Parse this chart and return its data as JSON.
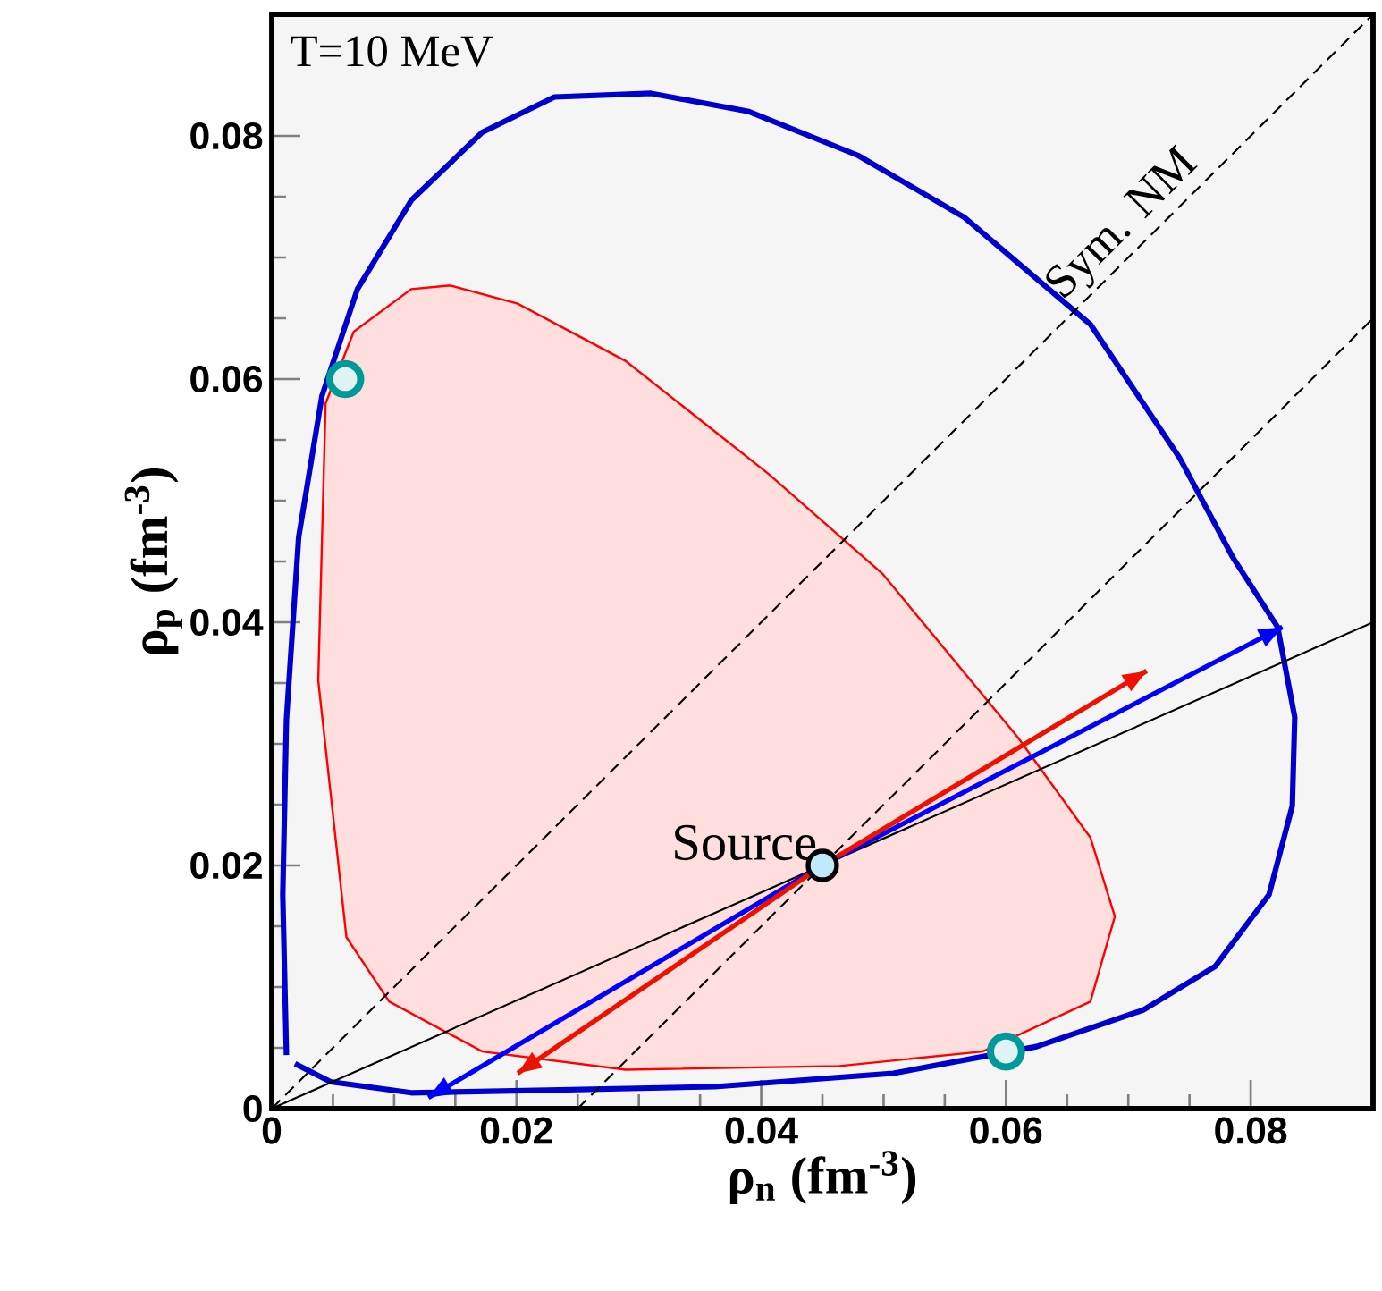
{
  "chart_data": {
    "type": "line",
    "xlabel": "ρ$_{n}$  (fm$^{-3}$)",
    "ylabel": "ρ$_{p}$  (fm$^{-3}$)",
    "xlim": [
      0,
      0.09
    ],
    "ylim": [
      0,
      0.09
    ],
    "xticks": [
      0,
      0.02,
      0.04,
      0.06,
      0.08
    ],
    "yticks": [
      0,
      0.02,
      0.04,
      0.06,
      0.08
    ],
    "grid": false,
    "annotations": [
      {
        "text": "T=10 MeV"
      },
      {
        "text": "Source",
        "x": 0.045,
        "y": 0.02
      }
    ],
    "series": [
      {
        "type": "area",
        "color": "#ff0000",
        "x": [
          0.0146,
          0.0201,
          0.0289,
          0.0406,
          0.0499,
          0.061,
          0.0669,
          0.0689,
          0.0669,
          0.0581,
          0.0464,
          0.0289,
          0.0172,
          0.0096,
          0.0061,
          0.0038,
          0.0044,
          0.0067,
          0.0114,
          0.0146
        ],
        "values": [
          0.0677,
          0.0662,
          0.0615,
          0.0522,
          0.044,
          0.0305,
          0.0223,
          0.0158,
          0.0088,
          0.0047,
          0.0035,
          0.0032,
          0.0047,
          0.0088,
          0.0141,
          0.0352,
          0.058,
          0.0639,
          0.0674,
          0.0677
        ]
      },
      {
        "color": "#0000cc",
        "x": [
          0.0012,
          0.0009,
          0.0012,
          0.0022,
          0.0041,
          0.007,
          0.0114,
          0.0172,
          0.0231,
          0.031,
          0.039,
          0.0479,
          0.0566,
          0.0669,
          0.0742,
          0.0785,
          0.0822,
          0.0836,
          0.0834,
          0.0815,
          0.0771,
          0.0712,
          0.0625,
          0.0508,
          0.0362,
          0.0216,
          0.0114,
          0.0048,
          0.0019
        ],
        "values": [
          0.0044,
          0.0176,
          0.032,
          0.047,
          0.0586,
          0.0674,
          0.0747,
          0.0803,
          0.0832,
          0.0835,
          0.082,
          0.0784,
          0.0733,
          0.0645,
          0.0535,
          0.0454,
          0.0396,
          0.0322,
          0.0249,
          0.0176,
          0.0117,
          0.0081,
          0.0051,
          0.0029,
          0.0018,
          0.0015,
          0.0013,
          0.0022,
          0.0037
        ]
      },
      {
        "name": "Sym. NM",
        "color": "#000000",
        "line_style": "dashed",
        "x": [
          0,
          0.09
        ],
        "values": [
          0,
          0.09
        ]
      },
      {
        "color": "#000000",
        "line_style": "dashed",
        "x": [
          0.025,
          0.09
        ],
        "values": [
          0,
          0.065
        ]
      },
      {
        "color": "#000000",
        "line_style": "solid",
        "x": [
          0,
          0.09
        ],
        "values": [
          0,
          0.04
        ]
      },
      {
        "color": "#0000ff",
        "line_style": "solid",
        "x": [
          0.0128,
          0.045,
          0.0826
        ],
        "values": [
          0.0009,
          0.02,
          0.0396
        ]
      },
      {
        "color": "#ee1100",
        "line_style": "solid",
        "x": [
          0.0201,
          0.045,
          0.0715
        ],
        "values": [
          0.0029,
          0.02,
          0.036
        ]
      },
      {
        "type": "scatter",
        "color": "#009999",
        "x": [
          0.006,
          0.06
        ],
        "values": [
          0.06,
          0.0047
        ]
      },
      {
        "type": "scatter",
        "color": "#000000",
        "x": [
          0.045
        ],
        "values": [
          0.02
        ]
      }
    ]
  }
}
